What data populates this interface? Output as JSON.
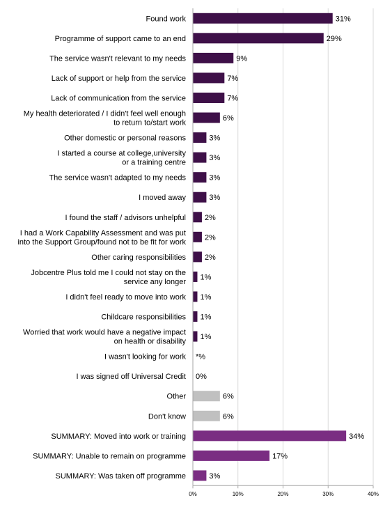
{
  "chart_data": {
    "type": "bar",
    "orientation": "horizontal",
    "xlim": [
      0,
      40
    ],
    "grid": true,
    "x_ticks": [
      "0%",
      "10%",
      "20%",
      "30%",
      "40%"
    ],
    "x_tick_values": [
      0,
      10,
      20,
      30,
      40
    ],
    "colors": {
      "main": "#3e1048",
      "other": "#c0c0c0",
      "summary": "#7a2d82",
      "grid": "#d9d9d9",
      "axis": "#a6a6a6",
      "text": "#000000"
    },
    "bars": [
      {
        "label": [
          "Found work"
        ],
        "value": 31,
        "value_label": "31%",
        "group": "main"
      },
      {
        "label": [
          "Programme of support came to an end"
        ],
        "value": 29,
        "value_label": "29%",
        "group": "main"
      },
      {
        "label": [
          "The service wasn't relevant to my needs"
        ],
        "value": 9,
        "value_label": "9%",
        "group": "main"
      },
      {
        "label": [
          "Lack of support or help from the service"
        ],
        "value": 7,
        "value_label": "7%",
        "group": "main"
      },
      {
        "label": [
          "Lack of communication from the service"
        ],
        "value": 7,
        "value_label": "7%",
        "group": "main"
      },
      {
        "label": [
          "My health deteriorated / I didn't feel well enough",
          "to return to/start work"
        ],
        "value": 6,
        "value_label": "6%",
        "group": "main"
      },
      {
        "label": [
          "Other domestic or personal reasons"
        ],
        "value": 3,
        "value_label": "3%",
        "group": "main"
      },
      {
        "label": [
          "I started a course at college,university",
          "or a training centre"
        ],
        "value": 3,
        "value_label": "3%",
        "group": "main"
      },
      {
        "label": [
          "The service wasn't adapted to my needs"
        ],
        "value": 3,
        "value_label": "3%",
        "group": "main"
      },
      {
        "label": [
          "I moved away"
        ],
        "value": 3,
        "value_label": "3%",
        "group": "main"
      },
      {
        "label": [
          "I found the staff / advisors unhelpful"
        ],
        "value": 2,
        "value_label": "2%",
        "group": "main"
      },
      {
        "label": [
          "I had a Work Capability Assessment and was put",
          "into the Support Group/found not to be fit for work"
        ],
        "value": 2,
        "value_label": "2%",
        "group": "main"
      },
      {
        "label": [
          "Other caring responsibilities"
        ],
        "value": 2,
        "value_label": "2%",
        "group": "main"
      },
      {
        "label": [
          "Jobcentre Plus told me I could not stay on the",
          "service any longer"
        ],
        "value": 1,
        "value_label": "1%",
        "group": "main"
      },
      {
        "label": [
          "I didn't feel ready to move into work"
        ],
        "value": 1,
        "value_label": "1%",
        "group": "main"
      },
      {
        "label": [
          "Childcare responsibilities"
        ],
        "value": 1,
        "value_label": "1%",
        "group": "main"
      },
      {
        "label": [
          "Worried that work would have a negative impact",
          "on health or disability"
        ],
        "value": 1,
        "value_label": "1%",
        "group": "main"
      },
      {
        "label": [
          "I wasn't looking for work"
        ],
        "value": 0,
        "value_label": "*%",
        "group": "main"
      },
      {
        "label": [
          "I was signed off Universal Credit"
        ],
        "value": 0,
        "value_label": "0%",
        "group": "main"
      },
      {
        "label": [
          "Other"
        ],
        "value": 6,
        "value_label": "6%",
        "group": "other"
      },
      {
        "label": [
          "Don't know"
        ],
        "value": 6,
        "value_label": "6%",
        "group": "other"
      },
      {
        "label": [
          "SUMMARY: Moved into work or training"
        ],
        "value": 34,
        "value_label": "34%",
        "group": "summary"
      },
      {
        "label": [
          "SUMMARY: Unable to remain on programme"
        ],
        "value": 17,
        "value_label": "17%",
        "group": "summary"
      },
      {
        "label": [
          "SUMMARY: Was taken off programme"
        ],
        "value": 3,
        "value_label": "3%",
        "group": "summary"
      }
    ]
  }
}
